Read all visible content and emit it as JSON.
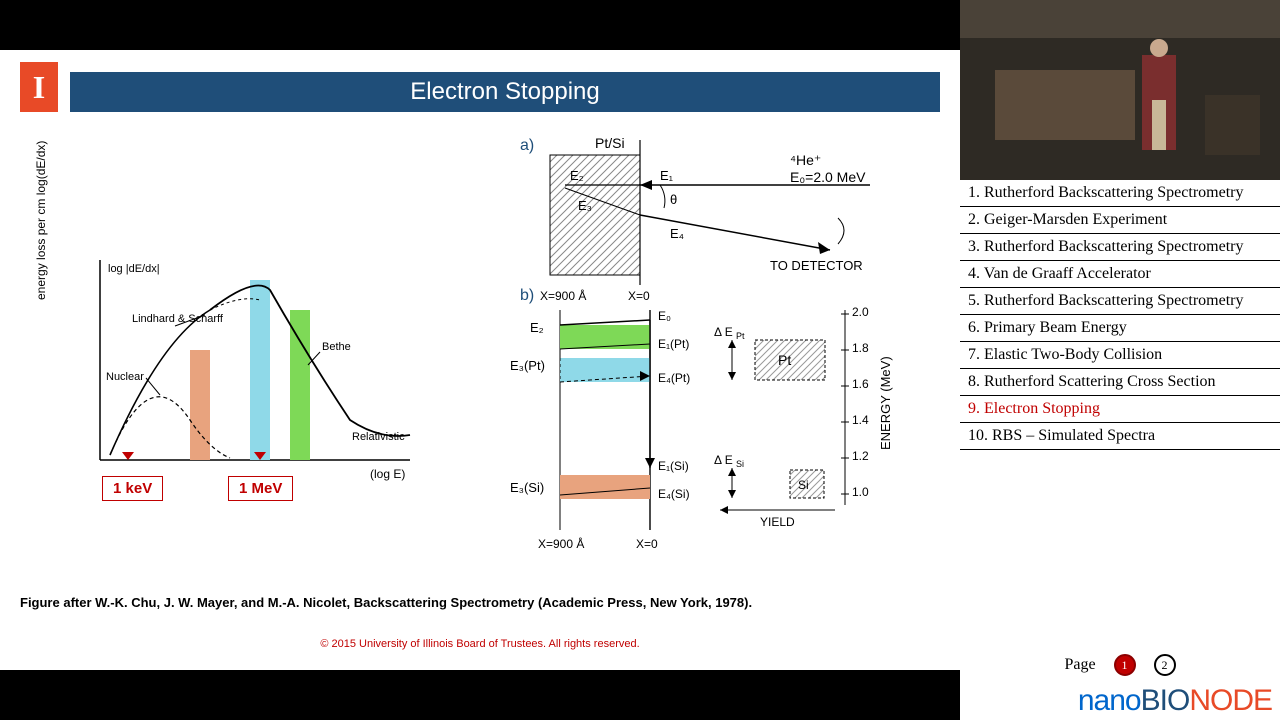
{
  "slide": {
    "title": "Electron Stopping",
    "caption": "Figure after W.-K. Chu, J. W. Mayer, and M.-A. Nicolet, Backscattering Spectrometry (Academic Press, New York, 1978).",
    "copyright": "© 2015 University of Illinois Board of Trustees.  All rights reserved.",
    "logo_letter": "I",
    "left_plot": {
      "y_axis": "energy loss per cm  log(dE/dx)",
      "y_inset": "log |dE/dx|",
      "x_axis": "(log E)",
      "curves": [
        "Lindhard & Scharff",
        "Nuclear",
        "Bethe",
        "Relativistic"
      ],
      "x_marks": [
        "1 keV",
        "1 MeV"
      ],
      "highlight_bands": [
        {
          "color": "#e8a37e",
          "x": 0.3,
          "w": 0.06
        },
        {
          "color": "#8fd9e8",
          "x": 0.46,
          "w": 0.06
        },
        {
          "color": "#7ed957",
          "x": 0.57,
          "w": 0.06
        }
      ],
      "line_color": "#000",
      "axis_color": "#000"
    },
    "panel_a": {
      "label": "a)",
      "material": "Pt/Si",
      "hatch_color": "#a0a0a0",
      "x_left": "X=900 Å",
      "x_right": "X=0",
      "incident": "⁴He⁺",
      "E0": "E₀=2.0 MeV",
      "to_det": "TO DETECTOR",
      "angle": "θ",
      "E_labels": [
        "E₂",
        "E₃",
        "E₁",
        "E₄"
      ]
    },
    "panel_b": {
      "label": "b)",
      "x_left": "X=900 Å",
      "x_right": "X=0",
      "left_labels": [
        "E₂",
        "E₃(Pt)",
        "E₃(Si)"
      ],
      "right_labels": [
        "E₀",
        "E₁(Pt)",
        "E₄(Pt)",
        "E₁(Si)",
        "E₄(Si)"
      ],
      "bands": [
        {
          "color": "#7ed957",
          "y": 0.15,
          "h": 0.1
        },
        {
          "color": "#8fd9e8",
          "y": 0.28,
          "h": 0.1
        },
        {
          "color": "#e8a37e",
          "y": 0.72,
          "h": 0.1
        }
      ],
      "energy_axis": {
        "label": "ENERGY (MeV)",
        "ticks": [
          "2.0",
          "1.8",
          "1.6",
          "1.4",
          "1.2",
          "1.0"
        ]
      },
      "yield_axis": "YIELD",
      "pt_box": "Pt",
      "si_box": "Si",
      "delta_pt": "Δ E_Pt",
      "delta_si": "Δ E_Si"
    }
  },
  "toc": [
    "1. Rutherford Backscattering Spectrometry",
    "2. Geiger-Marsden Experiment",
    "3. Rutherford Backscattering Spectrometry",
    "4. Van de Graaff Accelerator",
    "5. Rutherford Backscattering Spectrometry",
    "6. Primary Beam Energy",
    "7. Elastic Two-Body Collision",
    "8. Rutherford Scattering Cross Section",
    "9. Electron Stopping",
    "10. RBS – Simulated Spectra"
  ],
  "toc_active_index": 8,
  "pager": {
    "label": "Page",
    "current": 1,
    "total": 2
  },
  "brand": {
    "p1": "nano",
    "p2": "BIO",
    "p3": "NODE"
  }
}
